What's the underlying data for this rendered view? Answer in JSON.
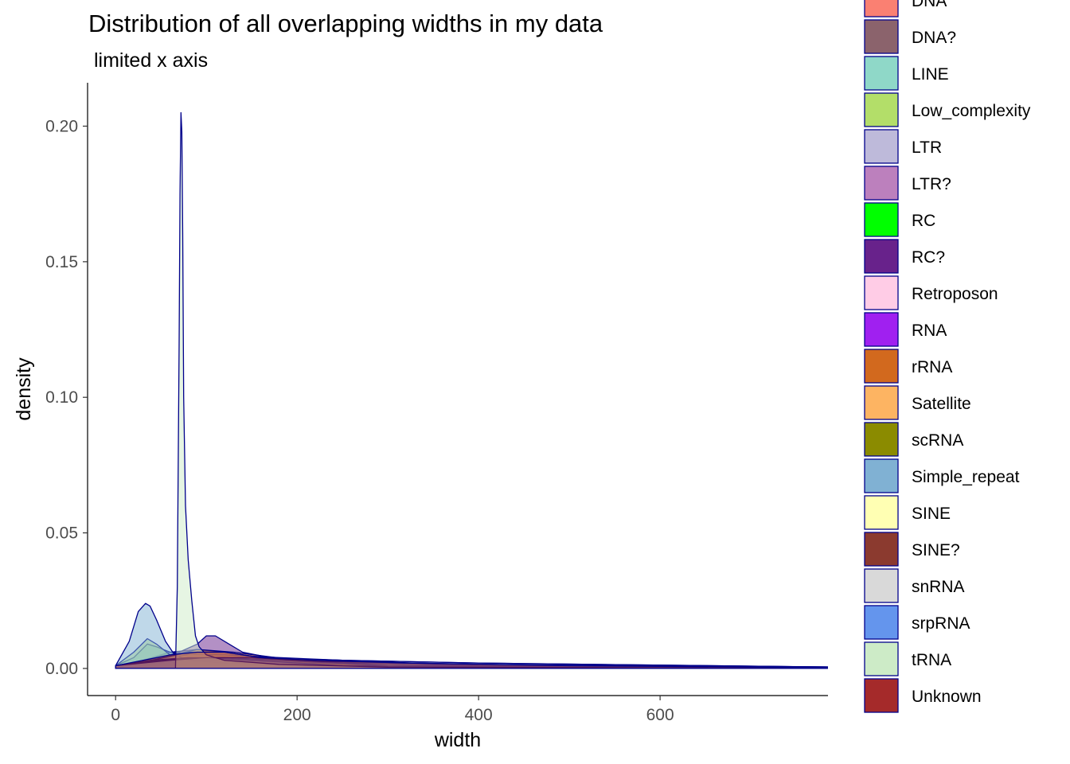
{
  "chart_data": {
    "type": "area",
    "title": "Distribution of all overlapping widths in my data",
    "subtitle": "limited x axis",
    "xlabel": "width",
    "ylabel": "density",
    "xlim": [
      -30,
      785
    ],
    "ylim": [
      -0.01,
      0.216
    ],
    "x_ticks": [
      0,
      200,
      400,
      600
    ],
    "y_ticks": [
      0.0,
      0.05,
      0.1,
      0.15,
      0.2
    ],
    "y_tick_labels": [
      "0.00",
      "0.05",
      "0.10",
      "0.15",
      "0.20"
    ],
    "grid": false,
    "legend_placement": "right",
    "outline_color": "#00008b",
    "fill_alpha": 0.5,
    "series": [
      {
        "name": "DNA",
        "color": "#FA8072",
        "x": [
          0,
          20,
          50,
          80,
          110,
          150,
          200,
          300,
          500,
          785
        ],
        "y": [
          0.001,
          0.002,
          0.004,
          0.005,
          0.005,
          0.004,
          0.003,
          0.002,
          0.001,
          0.0005
        ]
      },
      {
        "name": "DNA?",
        "color": "#8B636C",
        "x": [
          0,
          30,
          60,
          90,
          120,
          160,
          220,
          350,
          785
        ],
        "y": [
          0.001,
          0.003,
          0.006,
          0.007,
          0.006,
          0.004,
          0.002,
          0.001,
          0.0003
        ]
      },
      {
        "name": "LINE",
        "color": "#8FD8C8",
        "x": [
          0,
          20,
          35,
          45,
          60,
          90,
          150,
          250,
          400,
          785
        ],
        "y": [
          0.001,
          0.004,
          0.009,
          0.008,
          0.006,
          0.005,
          0.004,
          0.003,
          0.002,
          0.0005
        ]
      },
      {
        "name": "Low_complexity",
        "color": "#B3DE69",
        "x": [
          0,
          20,
          35,
          45,
          60,
          80,
          120,
          200,
          785
        ],
        "y": [
          0.001,
          0.006,
          0.011,
          0.009,
          0.005,
          0.003,
          0.002,
          0.001,
          0.0001
        ]
      },
      {
        "name": "LTR",
        "color": "#BEBADA",
        "x": [
          0,
          20,
          40,
          70,
          100,
          150,
          250,
          400,
          785
        ],
        "y": [
          0.001,
          0.002,
          0.003,
          0.004,
          0.005,
          0.004,
          0.003,
          0.002,
          0.0005
        ]
      },
      {
        "name": "LTR?",
        "color": "#BC80BD",
        "x": [
          0,
          30,
          60,
          100,
          150,
          220,
          350,
          785
        ],
        "y": [
          0.001,
          0.002,
          0.003,
          0.004,
          0.003,
          0.002,
          0.001,
          0.0003
        ]
      },
      {
        "name": "RC",
        "color": "#00FF00",
        "x": [
          0,
          50,
          100,
          200,
          400,
          785
        ],
        "y": [
          0.001,
          0.002,
          0.002,
          0.002,
          0.001,
          0.0003
        ]
      },
      {
        "name": "RC?",
        "color": "#68228B",
        "x": [
          0,
          40,
          70,
          90,
          100,
          110,
          125,
          140,
          170,
          220,
          300,
          785
        ],
        "y": [
          0.001,
          0.003,
          0.006,
          0.009,
          0.012,
          0.012,
          0.009,
          0.006,
          0.004,
          0.002,
          0.001,
          0.0002
        ]
      },
      {
        "name": "Retroposon",
        "color": "#FFCCE6",
        "x": [
          0,
          50,
          100,
          200,
          400,
          785
        ],
        "y": [
          0.001,
          0.002,
          0.003,
          0.002,
          0.001,
          0.0002
        ]
      },
      {
        "name": "RNA",
        "color": "#A020F0",
        "x": [
          0,
          40,
          80,
          100,
          104,
          108,
          115,
          150,
          250,
          785
        ],
        "y": [
          0.001,
          0.003,
          0.005,
          0.006,
          0.0,
          0.004,
          0.002,
          0.002,
          0.001,
          0.0002
        ]
      },
      {
        "name": "rRNA",
        "color": "#D2691E",
        "x": [
          0,
          50,
          90,
          130,
          200,
          300,
          500,
          785
        ],
        "y": [
          0.001,
          0.004,
          0.007,
          0.006,
          0.003,
          0.002,
          0.001,
          0.0002
        ]
      },
      {
        "name": "Satellite",
        "color": "#FDB462",
        "x": [
          0,
          40,
          80,
          120,
          180,
          250,
          400,
          785
        ],
        "y": [
          0.001,
          0.003,
          0.005,
          0.005,
          0.004,
          0.003,
          0.001,
          0.0002
        ]
      },
      {
        "name": "scRNA",
        "color": "#8B8B00",
        "x": [
          0,
          50,
          80,
          110,
          160,
          250,
          785
        ],
        "y": [
          0.001,
          0.002,
          0.003,
          0.003,
          0.002,
          0.001,
          0.0002
        ]
      },
      {
        "name": "Simple_repeat",
        "color": "#80B1D3",
        "x": [
          0,
          15,
          25,
          33,
          38,
          45,
          55,
          65,
          80,
          120,
          200,
          785
        ],
        "y": [
          0.001,
          0.01,
          0.021,
          0.024,
          0.023,
          0.018,
          0.01,
          0.005,
          0.003,
          0.002,
          0.001,
          0.0001
        ]
      },
      {
        "name": "SINE",
        "color": "#FFFFB3",
        "x": [
          0,
          40,
          80,
          120,
          160,
          250,
          400,
          785
        ],
        "y": [
          0.001,
          0.003,
          0.006,
          0.006,
          0.004,
          0.002,
          0.001,
          0.0002
        ]
      },
      {
        "name": "SINE?",
        "color": "#8B3A2F",
        "x": [
          0,
          40,
          80,
          120,
          180,
          300,
          785
        ],
        "y": [
          0.001,
          0.003,
          0.004,
          0.004,
          0.003,
          0.001,
          0.0002
        ]
      },
      {
        "name": "snRNA",
        "color": "#D9D9D9",
        "x": [
          0,
          50,
          100,
          150,
          250,
          785
        ],
        "y": [
          0.001,
          0.003,
          0.004,
          0.003,
          0.001,
          0.0002
        ]
      },
      {
        "name": "srpRNA",
        "color": "#6495ED",
        "x": [
          0,
          30,
          60,
          100,
          150,
          200,
          230,
          300,
          400,
          500,
          600,
          700,
          785
        ],
        "y": [
          0.001,
          0.002,
          0.003,
          0.004,
          0.004,
          0.003,
          0.0025,
          0.0022,
          0.0015,
          0.0012,
          0.001,
          0.0008,
          0.0006
        ]
      },
      {
        "name": "tRNA",
        "color": "#CDEBC7",
        "x": [
          0,
          60,
          66,
          68,
          70,
          71,
          72,
          73,
          74,
          75,
          77,
          80,
          84,
          88,
          92,
          100,
          120,
          180,
          300,
          785
        ],
        "y": [
          0.0,
          0.0,
          0.0,
          0.03,
          0.12,
          0.175,
          0.205,
          0.198,
          0.16,
          0.1,
          0.06,
          0.04,
          0.025,
          0.012,
          0.008,
          0.005,
          0.003,
          0.0015,
          0.0005,
          0.0001
        ]
      },
      {
        "name": "Unknown",
        "color": "#A52A2A",
        "x": [
          0,
          30,
          60,
          90,
          120,
          160,
          220,
          320,
          500,
          785
        ],
        "y": [
          0.001,
          0.003,
          0.005,
          0.006,
          0.006,
          0.004,
          0.003,
          0.002,
          0.001,
          0.0003
        ]
      }
    ]
  }
}
